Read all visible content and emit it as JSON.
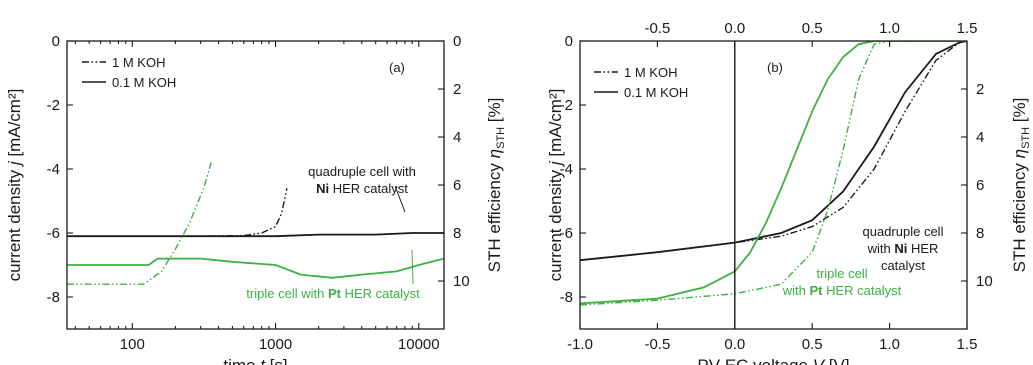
{
  "chart_data": [
    {
      "type": "line",
      "panel_label": "(a)",
      "xlabel": {
        "pre": "time ",
        "var": "t",
        "post": " [s]"
      },
      "ylabel_left": {
        "pre": "current density ",
        "var": "j",
        "post": " [mA/cm²]"
      },
      "ylabel_right": {
        "pre": "STH efficiency ",
        "var": "η",
        "sub": "STH",
        "post": " [%]"
      },
      "x_scale": "log",
      "xlim": [
        35,
        15000
      ],
      "ylim": [
        -9,
        0
      ],
      "x_ticks": [
        {
          "v": 100,
          "label": "100"
        },
        {
          "v": 1000,
          "label": "1000"
        },
        {
          "v": 10000,
          "label": "10000"
        }
      ],
      "y_ticks": [
        {
          "v": 0,
          "label": "0"
        },
        {
          "v": -2,
          "label": "-2"
        },
        {
          "v": -4,
          "label": "-4"
        },
        {
          "v": -6,
          "label": "-6"
        },
        {
          "v": -8,
          "label": "-8"
        }
      ],
      "y2_ticks": [
        {
          "v": 0,
          "label": "0"
        },
        {
          "v": -1.5,
          "label": "2"
        },
        {
          "v": -3,
          "label": "4"
        },
        {
          "v": -4.5,
          "label": "6"
        },
        {
          "v": -6,
          "label": "8"
        },
        {
          "v": -7.5,
          "label": "10"
        }
      ],
      "legend": {
        "position": "top-left",
        "entries": [
          {
            "label": "1 M KOH",
            "style": "dashdotdot"
          },
          {
            "label": "0.1 M KOH",
            "style": "solid"
          }
        ]
      },
      "annotations": [
        {
          "lines": [
            [
              {
                "t": "quadruple cell with",
                "b": false
              }
            ],
            [
              {
                "t": "Ni",
                "b": true
              },
              {
                "t": " HER catalyst",
                "b": false
              }
            ]
          ],
          "color": "#1a1a1a"
        },
        {
          "lines": [
            [
              {
                "t": "triple cell with ",
                "b": false
              },
              {
                "t": "Pt",
                "b": true
              },
              {
                "t": " HER catalyst",
                "b": false
              }
            ]
          ],
          "color": "#3cb043"
        }
      ],
      "series": [
        {
          "color": "#1a1a1a",
          "style": "solid",
          "x": [
            35,
            100,
            300,
            1000,
            2000,
            5000,
            9000,
            15000
          ],
          "y": [
            -6.1,
            -6.1,
            -6.1,
            -6.1,
            -6.05,
            -6.05,
            -6.0,
            -6.0
          ]
        },
        {
          "color": "#1a1a1a",
          "style": "dashdotdot",
          "x": [
            35,
            300,
            600,
            800,
            1000,
            1100,
            1150,
            1200
          ],
          "y": [
            -6.1,
            -6.1,
            -6.08,
            -6.0,
            -5.8,
            -5.4,
            -5.0,
            -4.6
          ]
        },
        {
          "color": "#3cb043",
          "style": "solid",
          "x": [
            35,
            130,
            150,
            300,
            500,
            1000,
            1500,
            2500,
            4000,
            7000,
            10000,
            15000
          ],
          "y": [
            -7.0,
            -7.0,
            -6.8,
            -6.8,
            -6.9,
            -7.0,
            -7.3,
            -7.4,
            -7.3,
            -7.2,
            -7.0,
            -6.8
          ]
        },
        {
          "color": "#3cb043",
          "style": "dashdotdot",
          "x": [
            35,
            120,
            160,
            200,
            250,
            290,
            320,
            340,
            355
          ],
          "y": [
            -7.6,
            -7.6,
            -7.2,
            -6.5,
            -5.7,
            -5.0,
            -4.5,
            -4.1,
            -3.8
          ]
        }
      ]
    },
    {
      "type": "line",
      "panel_label": "(b)",
      "xlabel": {
        "pre": "PV-EC voltage ",
        "var": "V",
        "post": " [V]"
      },
      "ylabel_left": {
        "pre": "current density ",
        "var": "j",
        "post": " [mA/cm²]"
      },
      "ylabel_right": {
        "pre": "STH efficiency ",
        "var": "η",
        "sub": "STH",
        "post": " [%]"
      },
      "xlim": [
        -1.0,
        1.5
      ],
      "ylim": [
        -9,
        0
      ],
      "x_ticks": [
        {
          "v": -1.0,
          "label": "-1.0"
        },
        {
          "v": -0.5,
          "label": "-0.5"
        },
        {
          "v": 0.0,
          "label": "0.0"
        },
        {
          "v": 0.5,
          "label": "0.5"
        },
        {
          "v": 1.0,
          "label": "1.0"
        },
        {
          "v": 1.5,
          "label": "1.5"
        }
      ],
      "x2_ticks": [
        {
          "v": -0.5,
          "label": "-0.5"
        },
        {
          "v": 0.0,
          "label": "0.0"
        },
        {
          "v": 0.5,
          "label": "0.5"
        },
        {
          "v": 1.0,
          "label": "1.0"
        },
        {
          "v": 1.5,
          "label": "1.5"
        }
      ],
      "y_ticks": [
        {
          "v": 0,
          "label": "0"
        },
        {
          "v": -2,
          "label": "-2"
        },
        {
          "v": -4,
          "label": "-4"
        },
        {
          "v": -6,
          "label": "-6"
        },
        {
          "v": -8,
          "label": "-8"
        }
      ],
      "y2_ticks": [
        {
          "v": -1.5,
          "label": "2"
        },
        {
          "v": -3,
          "label": "4"
        },
        {
          "v": -4.5,
          "label": "6"
        },
        {
          "v": -6,
          "label": "8"
        },
        {
          "v": -7.5,
          "label": "10"
        }
      ],
      "vline_x": 0.0,
      "legend": {
        "position": "top-left",
        "entries": [
          {
            "label": "1 M KOH",
            "style": "dashdotdot"
          },
          {
            "label": "0.1 M KOH",
            "style": "solid"
          }
        ]
      },
      "annotations": [
        {
          "lines": [
            [
              {
                "t": "quadruple cell",
                "b": false
              }
            ],
            [
              {
                "t": "with ",
                "b": false
              },
              {
                "t": "Ni",
                "b": true
              },
              {
                "t": " HER",
                "b": false
              }
            ],
            [
              {
                "t": "catalyst",
                "b": false
              }
            ]
          ],
          "color": "#1a1a1a"
        },
        {
          "lines": [
            [
              {
                "t": "triple cell",
                "b": false
              }
            ],
            [
              {
                "t": "with ",
                "b": false
              },
              {
                "t": "Pt",
                "b": true
              },
              {
                "t": " HER catalyst",
                "b": false
              }
            ]
          ],
          "color": "#3cb043"
        }
      ],
      "series": [
        {
          "color": "#1a1a1a",
          "style": "solid",
          "x": [
            -1.0,
            -0.5,
            0.0,
            0.3,
            0.5,
            0.7,
            0.9,
            1.1,
            1.3,
            1.45,
            1.5
          ],
          "y": [
            -6.85,
            -6.6,
            -6.3,
            -6.0,
            -5.6,
            -4.7,
            -3.3,
            -1.6,
            -0.4,
            -0.05,
            0
          ]
        },
        {
          "color": "#1a1a1a",
          "style": "dashdotdot",
          "x": [
            -1.0,
            -0.5,
            0.0,
            0.3,
            0.5,
            0.7,
            0.9,
            1.1,
            1.3,
            1.45,
            1.5
          ],
          "y": [
            -6.85,
            -6.6,
            -6.3,
            -6.1,
            -5.8,
            -5.2,
            -4.0,
            -2.2,
            -0.6,
            -0.05,
            0
          ]
        },
        {
          "color": "#3cb043",
          "style": "solid",
          "x": [
            -1.0,
            -0.5,
            -0.2,
            0.0,
            0.1,
            0.2,
            0.3,
            0.4,
            0.5,
            0.6,
            0.7,
            0.8,
            0.9,
            1.0,
            1.2,
            1.5
          ],
          "y": [
            -8.2,
            -8.05,
            -7.7,
            -7.2,
            -6.6,
            -5.7,
            -4.6,
            -3.4,
            -2.2,
            -1.2,
            -0.5,
            -0.1,
            0,
            0,
            0,
            0
          ]
        },
        {
          "color": "#3cb043",
          "style": "dashdotdot",
          "x": [
            -1.0,
            -0.5,
            0.0,
            0.3,
            0.5,
            0.6,
            0.7,
            0.8,
            0.9,
            1.0,
            1.2,
            1.5
          ],
          "y": [
            -8.25,
            -8.1,
            -7.9,
            -7.6,
            -6.6,
            -5.3,
            -3.4,
            -1.2,
            -0.1,
            0,
            0,
            0
          ]
        }
      ]
    }
  ]
}
